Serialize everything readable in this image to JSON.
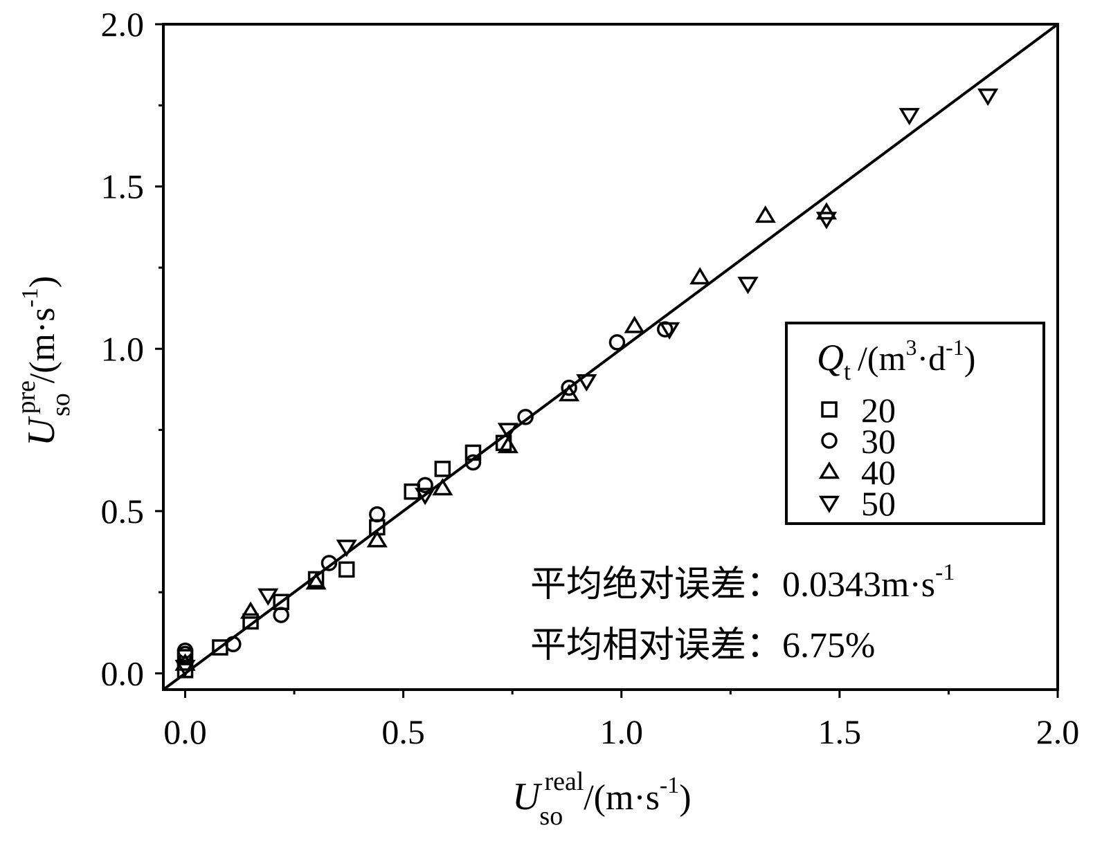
{
  "chart_data": {
    "type": "scatter",
    "xlabel": {
      "symbol": "U",
      "sup": "real",
      "sub": "so",
      "unit_pre": "/(m·s",
      "unit_sup": "-1",
      "unit_post": ")"
    },
    "ylabel": {
      "symbol": "U",
      "sup": "pre",
      "sub": "so",
      "unit_pre": "/(m·s",
      "unit_sup": "-1",
      "unit_post": ")"
    },
    "xlim": [
      -0.05,
      2.0
    ],
    "ylim": [
      -0.05,
      2.0
    ],
    "xticks": [
      "0.0",
      "0.5",
      "1.0",
      "1.5",
      "2.0"
    ],
    "yticks": [
      "0.0",
      "0.5",
      "1.0",
      "1.5",
      "2.0"
    ],
    "grid": false,
    "legend": {
      "placement": "right",
      "title": {
        "symbol": "Q",
        "sub": "t",
        "unit_pre": "/(m",
        "unit_sup1": "3",
        "unit_mid": "·d",
        "unit_sup2": "-1",
        "unit_post": ")"
      }
    },
    "reference_line": {
      "type": "y=x",
      "from": -0.05,
      "to": 2.0
    },
    "series": [
      {
        "name": "20",
        "marker": "square",
        "points": [
          [
            0.0,
            0.01
          ],
          [
            0.0,
            0.05
          ],
          [
            0.08,
            0.08
          ],
          [
            0.15,
            0.16
          ],
          [
            0.22,
            0.22
          ],
          [
            0.3,
            0.29
          ],
          [
            0.37,
            0.32
          ],
          [
            0.44,
            0.45
          ],
          [
            0.52,
            0.56
          ],
          [
            0.59,
            0.63
          ],
          [
            0.66,
            0.68
          ],
          [
            0.73,
            0.71
          ]
        ]
      },
      {
        "name": "30",
        "marker": "circle",
        "points": [
          [
            0.0,
            0.06
          ],
          [
            0.0,
            0.07
          ],
          [
            0.11,
            0.09
          ],
          [
            0.22,
            0.18
          ],
          [
            0.33,
            0.34
          ],
          [
            0.44,
            0.49
          ],
          [
            0.55,
            0.58
          ],
          [
            0.66,
            0.65
          ],
          [
            0.78,
            0.79
          ],
          [
            0.88,
            0.88
          ],
          [
            0.99,
            1.02
          ],
          [
            1.1,
            1.06
          ]
        ]
      },
      {
        "name": "40",
        "marker": "triangle-up",
        "points": [
          [
            0.0,
            0.03
          ],
          [
            0.15,
            0.19
          ],
          [
            0.3,
            0.28
          ],
          [
            0.44,
            0.41
          ],
          [
            0.59,
            0.57
          ],
          [
            0.74,
            0.7
          ],
          [
            0.88,
            0.86
          ],
          [
            1.03,
            1.07
          ],
          [
            1.18,
            1.22
          ],
          [
            1.33,
            1.41
          ],
          [
            1.47,
            1.42
          ]
        ]
      },
      {
        "name": "50",
        "marker": "triangle-down",
        "points": [
          [
            0.0,
            0.02
          ],
          [
            0.19,
            0.24
          ],
          [
            0.37,
            0.39
          ],
          [
            0.55,
            0.55
          ],
          [
            0.74,
            0.75
          ],
          [
            0.92,
            0.9
          ],
          [
            1.11,
            1.06
          ],
          [
            1.29,
            1.2
          ],
          [
            1.47,
            1.4
          ],
          [
            1.66,
            1.72
          ],
          [
            1.84,
            1.78
          ]
        ]
      }
    ],
    "annotations": [
      {
        "label": "平均绝对误差：",
        "value": "0.0343m·s",
        "value_sup": "-1"
      },
      {
        "label": "平均相对误差：",
        "value": "6.75%",
        "value_sup": ""
      }
    ]
  }
}
